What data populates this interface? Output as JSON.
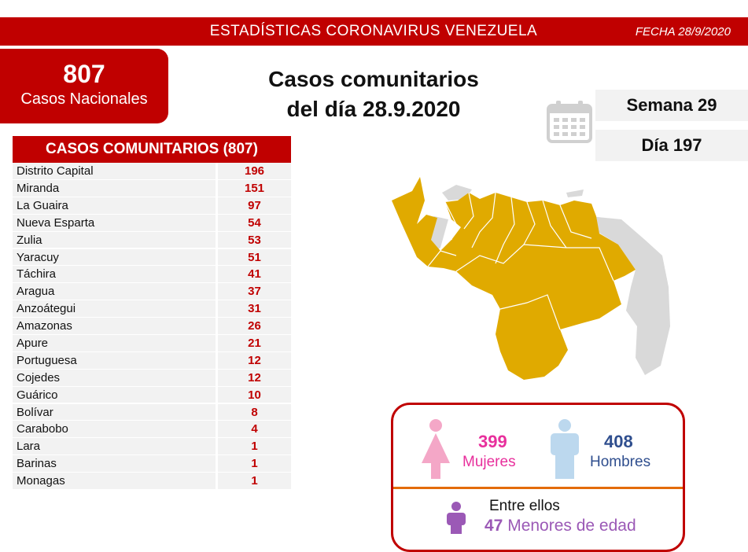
{
  "header": {
    "title": "ESTADÍSTICAS CORONAVIRUS VENEZUELA",
    "date": "FECHA 28/9/2020"
  },
  "national": {
    "count": "807",
    "label": "Casos Nacionales"
  },
  "day_title": {
    "line1": "Casos comunitarios",
    "line2": "del día 28.9.2020"
  },
  "week": {
    "week_label": "Semana 29",
    "day_label": "Día 197"
  },
  "table": {
    "title": "CASOS COMUNITARIOS (807)",
    "rows": [
      {
        "state": "Distrito Capital",
        "cases": "196"
      },
      {
        "state": "Miranda",
        "cases": "151"
      },
      {
        "state": "La Guaira",
        "cases": "97"
      },
      {
        "state": "Nueva Esparta",
        "cases": "54"
      },
      {
        "state": "Zulia",
        "cases": "53"
      },
      {
        "state": "Yaracuy",
        "cases": "51"
      },
      {
        "state": "Táchira",
        "cases": "41"
      },
      {
        "state": "Aragua",
        "cases": "37"
      },
      {
        "state": "Anzoátegui",
        "cases": "31"
      },
      {
        "state": "Amazonas",
        "cases": "26"
      },
      {
        "state": "Apure",
        "cases": "21"
      },
      {
        "state": "Portuguesa",
        "cases": "12"
      },
      {
        "state": "Cojedes",
        "cases": "12"
      },
      {
        "state": "Guárico",
        "cases": "10"
      },
      {
        "state": "Bolívar",
        "cases": "8"
      },
      {
        "state": "Carabobo",
        "cases": "4"
      },
      {
        "state": "Lara",
        "cases": "1"
      },
      {
        "state": "Barinas",
        "cases": "1"
      },
      {
        "state": "Monagas",
        "cases": "1"
      }
    ]
  },
  "gender": {
    "women_count": "399",
    "women_label": "Mujeres",
    "men_count": "408",
    "men_label": "Hombres",
    "minors_intro": "Entre ellos",
    "minors_count": "47",
    "minors_label": "Menores de edad"
  },
  "colors": {
    "brand_red": "#c00000",
    "map_affected": "#e0aa00",
    "map_unaffected": "#d9d9d9",
    "women": "#e82f9c",
    "men": "#2f4e8e",
    "minors": "#9b59b6"
  },
  "icons": [
    "calendar-icon",
    "female-icon",
    "male-icon",
    "child-icon",
    "venezuela-map"
  ]
}
